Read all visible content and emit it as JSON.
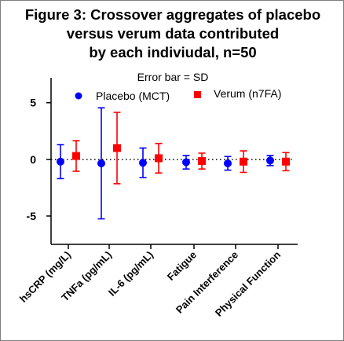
{
  "chart_data": {
    "type": "scatter",
    "title_lines": [
      "Figure 3: Crossover aggregates of placebo",
      "versus verum data contributed",
      "by each indiviudal, n=50"
    ],
    "subtitle": "Error bar = SD",
    "xlabel": "",
    "ylabel": "",
    "ylim": [
      -7.5,
      7.2
    ],
    "yticks": [
      5,
      0,
      -5
    ],
    "grid": false,
    "reference_line": {
      "y": 0,
      "style": "dotted"
    },
    "legend_position": "top-right",
    "categories": [
      "hsCRP (mg/L)",
      "TNFa (pg/mL)",
      "IL-6 (pg/mL)",
      "Fatigue",
      "Pain Interference",
      "Physical Function"
    ],
    "series": [
      {
        "name": "Placebo (MCT)",
        "marker": "circle",
        "color": "#0000ff",
        "mean": [
          -0.2,
          -0.35,
          -0.3,
          -0.25,
          -0.35,
          -0.1
        ],
        "sd": [
          1.5,
          4.9,
          1.3,
          0.6,
          0.6,
          0.45
        ]
      },
      {
        "name": "Verum (n7FA)",
        "marker": "square",
        "color": "#ff0000",
        "mean": [
          0.3,
          1.0,
          0.1,
          -0.15,
          -0.2,
          -0.2
        ],
        "sd": [
          1.35,
          3.15,
          1.3,
          0.7,
          0.95,
          0.8
        ]
      }
    ]
  }
}
